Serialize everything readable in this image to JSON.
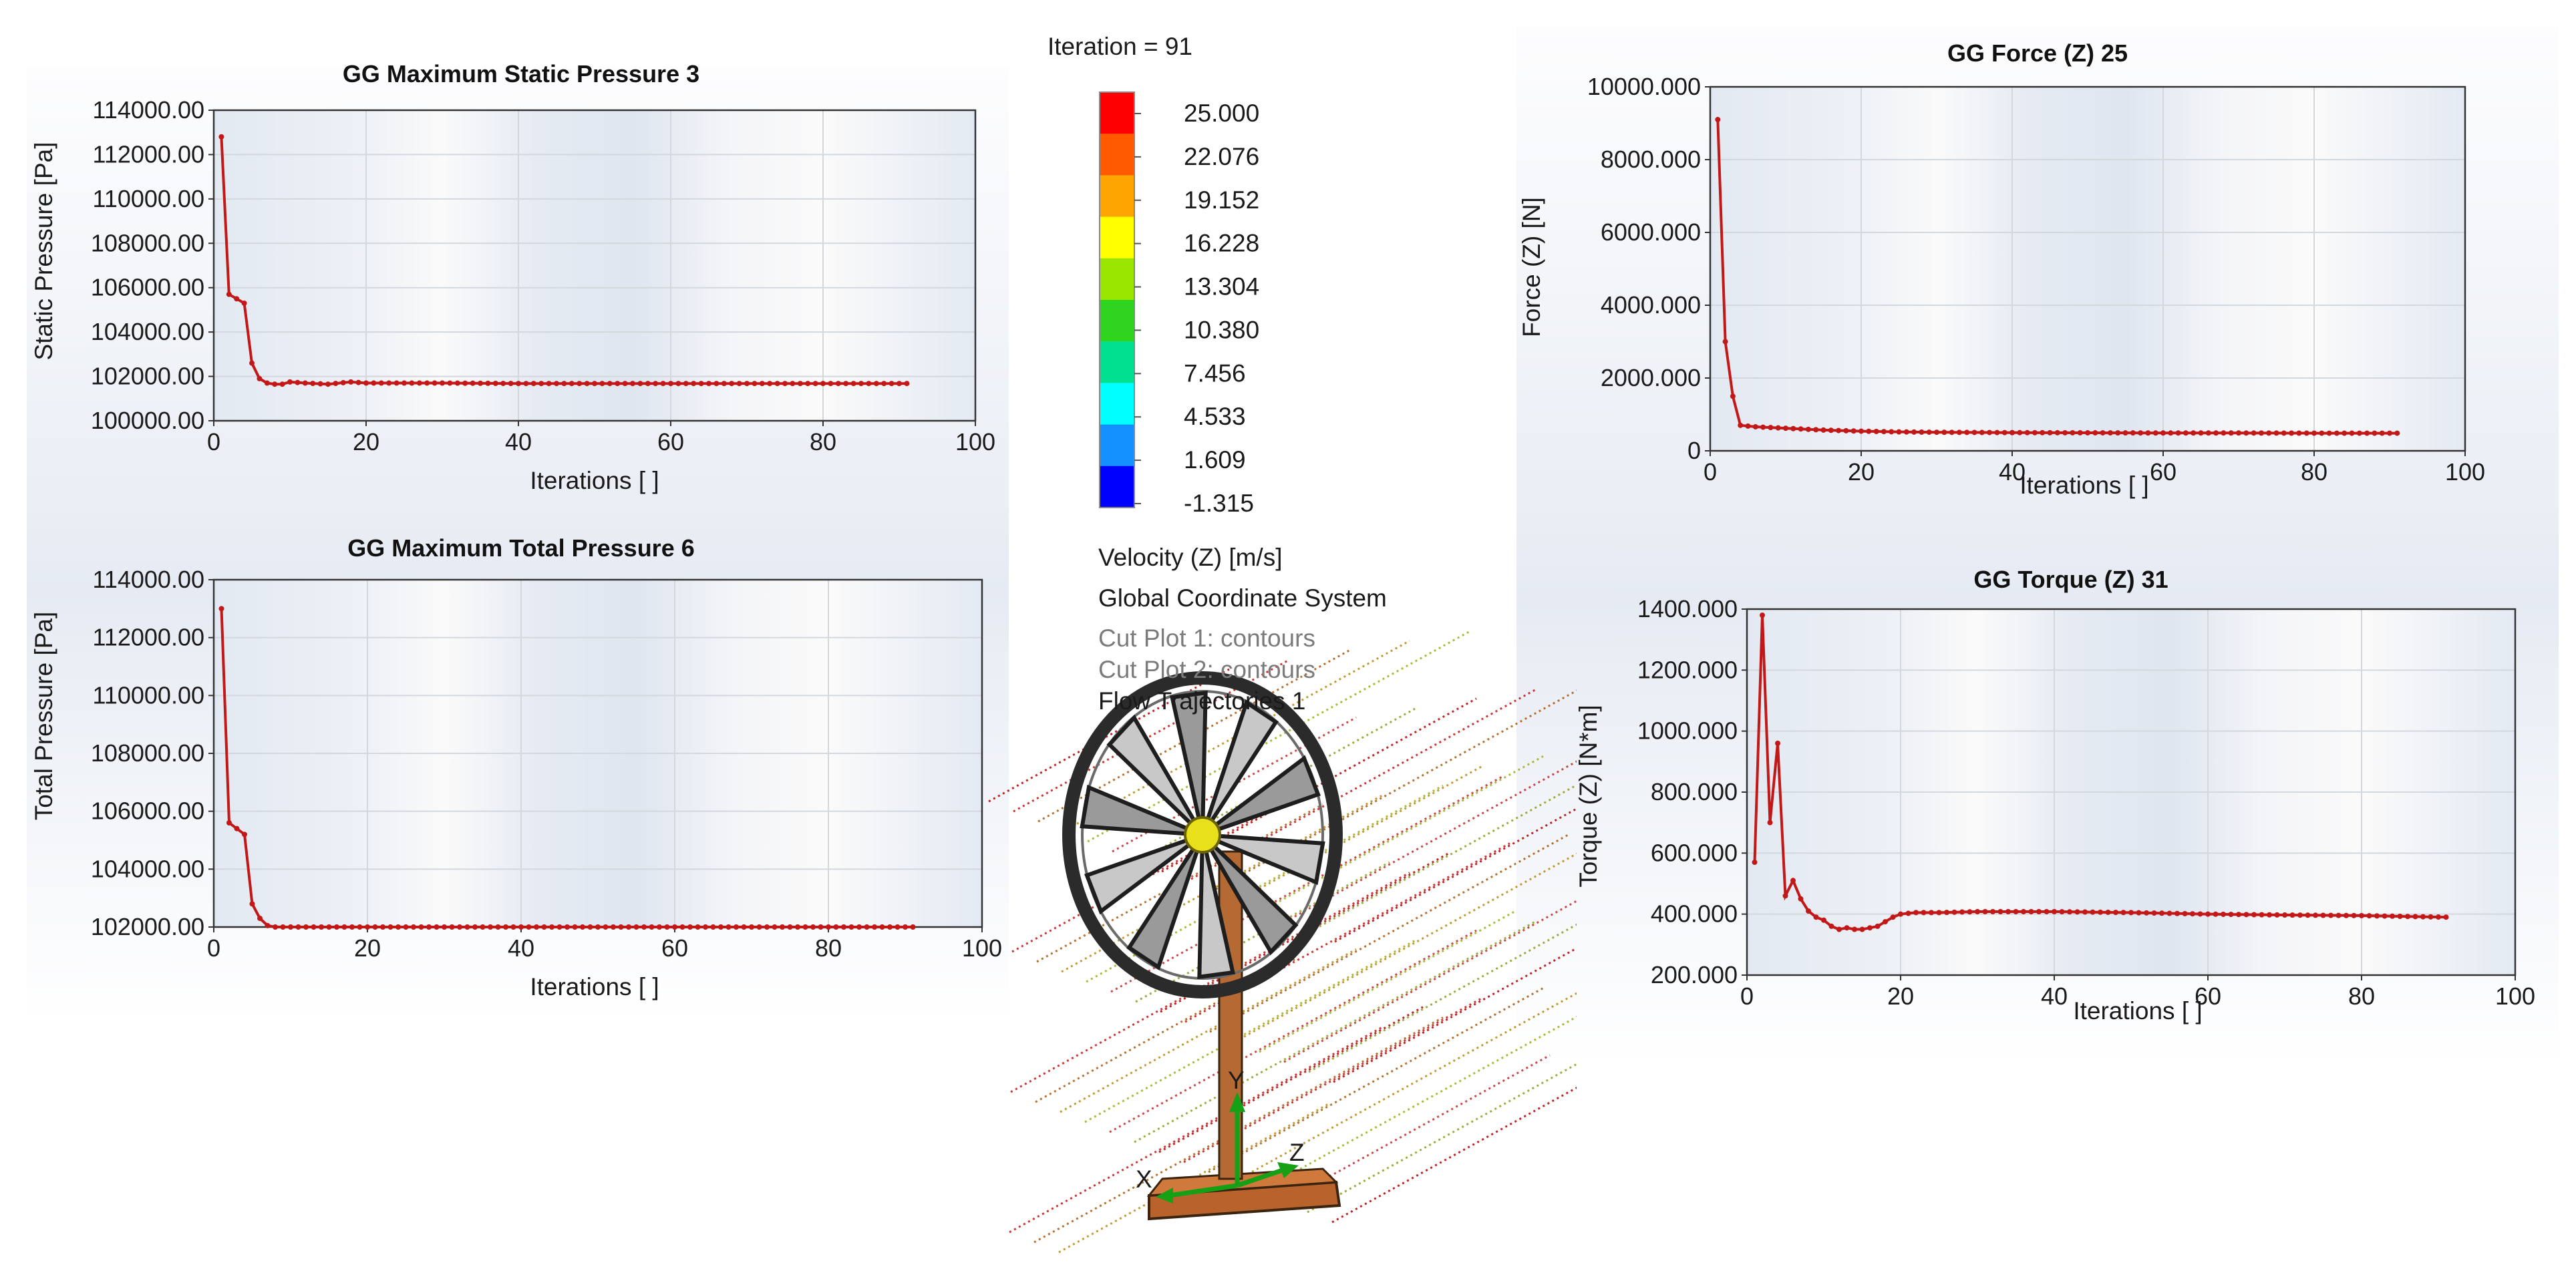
{
  "iteration_label": "Iteration = 91",
  "colors": {
    "series": "#c21818",
    "colorbar": [
      "#ff0000",
      "#ff5a00",
      "#ffa500",
      "#ffff00",
      "#9be600",
      "#2fd41f",
      "#00e08f",
      "#00ffff",
      "#1490ff",
      "#0000ff"
    ]
  },
  "legend": {
    "ticks": [
      "25.000",
      "22.076",
      "19.152",
      "16.228",
      "13.304",
      "10.380",
      "7.456",
      "4.533",
      "1.609",
      "-1.315"
    ],
    "quantity": "Velocity (Z) [m/s]",
    "coordinate_system": "Global Coordinate System",
    "features": [
      "Cut Plot 1: contours",
      "Cut Plot 2: contours",
      "Flow Trajectories 1"
    ]
  },
  "model_axes": {
    "x": "X",
    "y": "Y",
    "z": "Z"
  },
  "chart_data": [
    {
      "type": "line",
      "title": "GG Maximum Static Pressure 3",
      "xlabel": "Iterations [ ]",
      "ylabel": "Static Pressure [Pa]",
      "xlim": [
        0,
        100
      ],
      "ylim": [
        100000,
        114000
      ],
      "x_ticks": [
        "0",
        "20",
        "40",
        "60",
        "80",
        "100"
      ],
      "y_ticks": [
        "100000.00",
        "102000.00",
        "104000.00",
        "106000.00",
        "108000.00",
        "110000.00",
        "112000.00",
        "114000.00"
      ],
      "grid": true,
      "x": [
        1,
        2,
        3,
        4,
        5,
        6,
        7,
        8,
        9,
        10,
        12,
        15,
        18,
        20,
        25,
        30,
        40,
        50,
        60,
        70,
        80,
        91
      ],
      "values": [
        112800,
        105700,
        105500,
        105300,
        102600,
        101900,
        101700,
        101650,
        101650,
        101750,
        101700,
        101650,
        101750,
        101700,
        101700,
        101700,
        101680,
        101680,
        101680,
        101680,
        101680,
        101680
      ]
    },
    {
      "type": "line",
      "title": "GG Maximum Total Pressure 6",
      "xlabel": "Iterations [ ]",
      "ylabel": "Total Pressure [Pa]",
      "xlim": [
        0,
        100
      ],
      "ylim": [
        102000,
        114000
      ],
      "x_ticks": [
        "0",
        "20",
        "40",
        "60",
        "80",
        "100"
      ],
      "y_ticks": [
        "102000.00",
        "104000.00",
        "106000.00",
        "108000.00",
        "110000.00",
        "112000.00",
        "114000.00"
      ],
      "grid": true,
      "x": [
        1,
        2,
        3,
        4,
        5,
        6,
        7,
        8,
        10,
        15,
        20,
        30,
        40,
        50,
        60,
        70,
        80,
        91
      ],
      "values": [
        113000,
        105600,
        105400,
        105200,
        102800,
        102300,
        102050,
        102000,
        102000,
        102000,
        102000,
        102000,
        102000,
        102000,
        102000,
        102000,
        102000,
        102000
      ]
    },
    {
      "type": "line",
      "title": "GG Force (Z) 25",
      "xlabel": "Iterations [ ]",
      "ylabel": "Force (Z) [N]",
      "xlim": [
        0,
        100
      ],
      "ylim": [
        0,
        10000
      ],
      "x_ticks": [
        "0",
        "20",
        "40",
        "60",
        "80",
        "100"
      ],
      "y_ticks": [
        "0",
        "2000.000",
        "4000.000",
        "6000.000",
        "8000.000",
        "10000.000"
      ],
      "grid": true,
      "x": [
        1,
        2,
        3,
        4,
        5,
        6,
        8,
        10,
        12,
        15,
        20,
        25,
        30,
        40,
        50,
        60,
        70,
        80,
        91
      ],
      "values": [
        9100,
        3000,
        1500,
        700,
        680,
        660,
        640,
        620,
        600,
        570,
        540,
        520,
        510,
        500,
        495,
        490,
        490,
        485,
        485
      ]
    },
    {
      "type": "line",
      "title": "GG Torque (Z) 31",
      "xlabel": "Iterations [ ]",
      "ylabel": "Torque (Z) [N*m]",
      "xlim": [
        0,
        100
      ],
      "ylim": [
        200,
        1400
      ],
      "x_ticks": [
        "0",
        "20",
        "40",
        "60",
        "80",
        "100"
      ],
      "y_ticks": [
        "200.000",
        "400.000",
        "600.000",
        "800.000",
        "1000.000",
        "1200.000",
        "1400.000"
      ],
      "grid": true,
      "x": [
        1,
        2,
        3,
        4,
        5,
        6,
        7,
        8,
        9,
        10,
        11,
        12,
        13,
        14,
        15,
        16,
        17,
        18,
        19,
        20,
        22,
        25,
        30,
        40,
        50,
        60,
        70,
        80,
        91
      ],
      "values": [
        570,
        1380,
        700,
        960,
        460,
        510,
        450,
        410,
        390,
        380,
        360,
        350,
        355,
        350,
        350,
        355,
        360,
        375,
        390,
        400,
        405,
        405,
        408,
        408,
        405,
        400,
        397,
        395,
        390
      ]
    }
  ]
}
